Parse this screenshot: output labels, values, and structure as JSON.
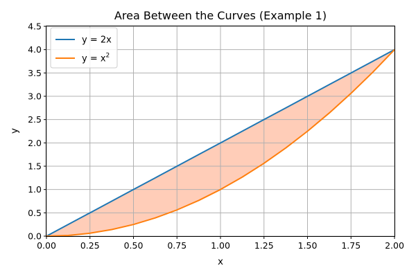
{
  "chart_data": {
    "type": "line",
    "title": "Area Between the Curves (Example 1)",
    "xlabel": "x",
    "ylabel": "y",
    "xlim": [
      0,
      2
    ],
    "ylim": [
      0,
      4.5
    ],
    "x_ticks": [
      "0.00",
      "0.25",
      "0.50",
      "0.75",
      "1.00",
      "1.25",
      "1.50",
      "1.75",
      "2.00"
    ],
    "y_ticks": [
      "0.0",
      "0.5",
      "1.0",
      "1.5",
      "2.0",
      "2.5",
      "3.0",
      "3.5",
      "4.0",
      "4.5"
    ],
    "grid": true,
    "legend_position": "top-left",
    "x": [
      0,
      0.125,
      0.25,
      0.375,
      0.5,
      0.625,
      0.75,
      0.875,
      1.0,
      1.125,
      1.25,
      1.375,
      1.5,
      1.625,
      1.75,
      1.875,
      2.0
    ],
    "series": [
      {
        "name": "y = 2x",
        "color": "#1f77b4",
        "values": [
          0,
          0.25,
          0.5,
          0.75,
          1.0,
          1.25,
          1.5,
          1.75,
          2.0,
          2.25,
          2.5,
          2.75,
          3.0,
          3.25,
          3.5,
          3.75,
          4.0
        ]
      },
      {
        "name": "y = x",
        "name_superscript": "2",
        "color": "#ff7f0e",
        "values": [
          0,
          0.015625,
          0.0625,
          0.140625,
          0.25,
          0.390625,
          0.5625,
          0.765625,
          1.0,
          1.265625,
          1.5625,
          1.890625,
          2.25,
          2.640625,
          3.0625,
          3.515625,
          4.0
        ]
      }
    ],
    "fill_between": {
      "upper": "y = 2x",
      "lower": "y = x^2",
      "color": "#ffcdb8"
    }
  }
}
